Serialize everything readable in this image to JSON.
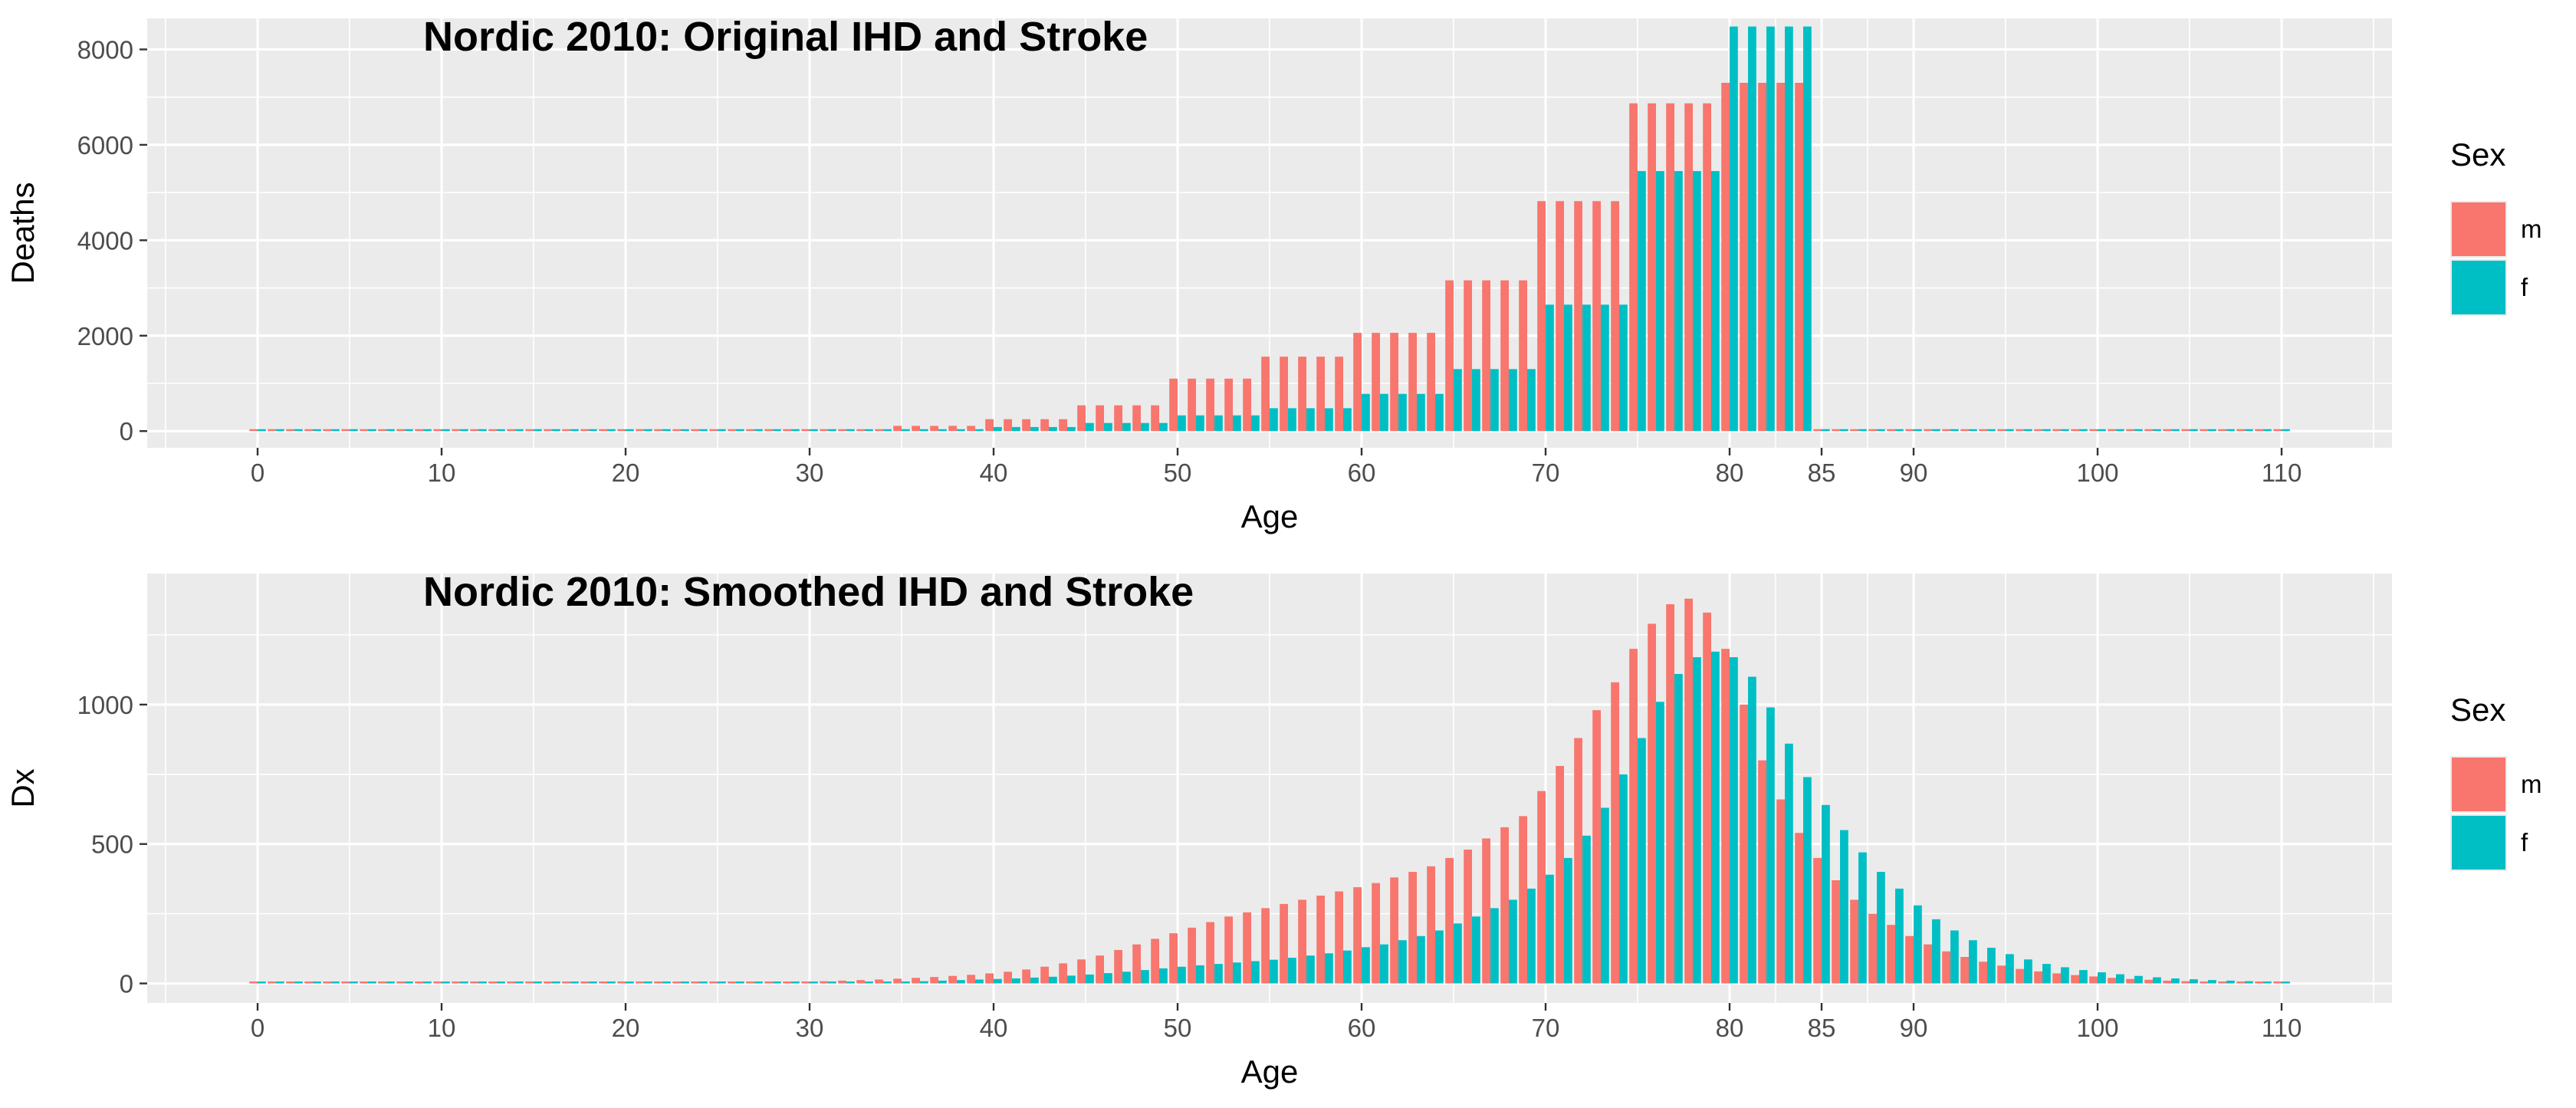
{
  "colors": {
    "panel_bg": "#EBEBEB",
    "grid": "#FFFFFF",
    "axis_text": "#4D4D4D",
    "title": "#000000"
  },
  "legend": {
    "title": "Sex",
    "entries": [
      {
        "key": "m",
        "label": "m",
        "color": "#F8766D"
      },
      {
        "key": "f",
        "label": "f",
        "color": "#00BFC4"
      }
    ]
  },
  "chart_data": [
    {
      "type": "bar",
      "title": "Nordic 2010: Original IHD and Stroke",
      "xlabel": "Age",
      "ylabel": "Deaths",
      "xlim": [
        -6,
        116
      ],
      "ylim": [
        -350,
        8650
      ],
      "x_ticks": [
        0,
        10,
        20,
        30,
        40,
        50,
        60,
        70,
        80,
        85,
        90,
        100,
        110
      ],
      "y_ticks": [
        0,
        2000,
        4000,
        6000,
        8000
      ],
      "grid": true,
      "legend_position": "right",
      "x": [
        0,
        1,
        2,
        3,
        4,
        5,
        6,
        7,
        8,
        9,
        10,
        11,
        12,
        13,
        14,
        15,
        16,
        17,
        18,
        19,
        20,
        21,
        22,
        23,
        24,
        25,
        26,
        27,
        28,
        29,
        30,
        31,
        32,
        33,
        34,
        35,
        36,
        37,
        38,
        39,
        40,
        41,
        42,
        43,
        44,
        45,
        46,
        47,
        48,
        49,
        50,
        51,
        52,
        53,
        54,
        55,
        56,
        57,
        58,
        59,
        60,
        61,
        62,
        63,
        64,
        65,
        66,
        67,
        68,
        69,
        70,
        71,
        72,
        73,
        74,
        75,
        76,
        77,
        78,
        79,
        80,
        81,
        82,
        83,
        84,
        85,
        86,
        87,
        88,
        89,
        90,
        91,
        92,
        93,
        94,
        95,
        96,
        97,
        98,
        99,
        100,
        101,
        102,
        103,
        104,
        105,
        106,
        107,
        108,
        109,
        110
      ],
      "series": [
        {
          "name": "m",
          "values": [
            2,
            2,
            2,
            2,
            2,
            2,
            2,
            2,
            2,
            2,
            2,
            2,
            2,
            2,
            2,
            3,
            3,
            3,
            3,
            3,
            6,
            6,
            6,
            6,
            6,
            15,
            15,
            15,
            15,
            15,
            40,
            40,
            40,
            40,
            40,
            110,
            110,
            110,
            110,
            110,
            250,
            250,
            250,
            250,
            250,
            540,
            540,
            540,
            540,
            540,
            1100,
            1100,
            1100,
            1100,
            1100,
            1560,
            1560,
            1560,
            1560,
            1560,
            2060,
            2060,
            2060,
            2060,
            2060,
            3160,
            3160,
            3160,
            3160,
            3160,
            4820,
            4820,
            4820,
            4820,
            4820,
            6870,
            6870,
            6870,
            6870,
            6870,
            7300,
            7300,
            7300,
            7300,
            7300,
            0,
            0,
            0,
            0,
            0,
            0,
            0,
            0,
            0,
            0,
            0,
            0,
            0,
            0,
            0,
            0,
            0,
            0,
            0,
            0,
            0,
            0,
            0,
            0,
            0,
            0
          ]
        },
        {
          "name": "f",
          "values": [
            1,
            1,
            1,
            1,
            1,
            1,
            1,
            1,
            1,
            1,
            1,
            1,
            1,
            1,
            1,
            1,
            1,
            1,
            1,
            1,
            2,
            2,
            2,
            2,
            2,
            5,
            5,
            5,
            5,
            5,
            12,
            12,
            12,
            12,
            12,
            35,
            35,
            35,
            35,
            35,
            85,
            85,
            85,
            85,
            85,
            170,
            170,
            170,
            170,
            170,
            330,
            330,
            330,
            330,
            330,
            480,
            480,
            480,
            480,
            480,
            780,
            780,
            780,
            780,
            780,
            1300,
            1300,
            1300,
            1300,
            1300,
            2650,
            2650,
            2650,
            2650,
            2650,
            5450,
            5450,
            5450,
            5450,
            5450,
            8480,
            8480,
            8480,
            8480,
            8480,
            0,
            0,
            0,
            0,
            0,
            0,
            0,
            0,
            0,
            0,
            0,
            0,
            0,
            0,
            0,
            0,
            0,
            0,
            0,
            0,
            0,
            0,
            0,
            0,
            0,
            0
          ]
        }
      ]
    },
    {
      "type": "bar",
      "title": "Nordic 2010: Smoothed IHD and Stroke",
      "xlabel": "Age",
      "ylabel": "Dx",
      "xlim": [
        -6,
        116
      ],
      "ylim": [
        -70,
        1470
      ],
      "x_ticks": [
        0,
        10,
        20,
        30,
        40,
        50,
        60,
        70,
        80,
        85,
        90,
        100,
        110
      ],
      "y_ticks": [
        0,
        500,
        1000
      ],
      "grid": true,
      "legend_position": "right",
      "x": [
        0,
        1,
        2,
        3,
        4,
        5,
        6,
        7,
        8,
        9,
        10,
        11,
        12,
        13,
        14,
        15,
        16,
        17,
        18,
        19,
        20,
        21,
        22,
        23,
        24,
        25,
        26,
        27,
        28,
        29,
        30,
        31,
        32,
        33,
        34,
        35,
        36,
        37,
        38,
        39,
        40,
        41,
        42,
        43,
        44,
        45,
        46,
        47,
        48,
        49,
        50,
        51,
        52,
        53,
        54,
        55,
        56,
        57,
        58,
        59,
        60,
        61,
        62,
        63,
        64,
        65,
        66,
        67,
        68,
        69,
        70,
        71,
        72,
        73,
        74,
        75,
        76,
        77,
        78,
        79,
        80,
        81,
        82,
        83,
        84,
        85,
        86,
        87,
        88,
        89,
        90,
        91,
        92,
        93,
        94,
        95,
        96,
        97,
        98,
        99,
        100,
        101,
        102,
        103,
        104,
        105,
        106,
        107,
        108,
        109,
        110
      ],
      "series": [
        {
          "name": "m",
          "values": [
            0,
            0,
            0,
            0,
            0,
            0,
            0,
            0,
            0,
            0,
            0,
            0,
            0,
            0,
            0,
            1,
            1,
            1,
            1,
            1,
            1,
            1,
            2,
            2,
            2,
            3,
            3,
            4,
            5,
            6,
            7,
            8,
            10,
            12,
            14,
            17,
            20,
            23,
            27,
            31,
            36,
            42,
            50,
            60,
            72,
            86,
            100,
            120,
            140,
            160,
            180,
            200,
            220,
            240,
            255,
            270,
            285,
            300,
            315,
            330,
            345,
            360,
            380,
            400,
            420,
            450,
            480,
            520,
            560,
            600,
            690,
            780,
            880,
            980,
            1080,
            1200,
            1290,
            1360,
            1380,
            1330,
            1200,
            1000,
            800,
            660,
            540,
            450,
            370,
            300,
            250,
            210,
            170,
            140,
            115,
            95,
            78,
            64,
            52,
            43,
            36,
            30,
            25,
            20,
            16,
            13,
            10,
            8,
            6,
            5,
            4,
            3,
            2
          ]
        },
        {
          "name": "f",
          "values": [
            0,
            0,
            0,
            0,
            0,
            0,
            0,
            0,
            0,
            0,
            0,
            0,
            0,
            0,
            0,
            0,
            0,
            0,
            0,
            0,
            0,
            0,
            1,
            1,
            1,
            1,
            1,
            1,
            2,
            2,
            3,
            3,
            4,
            5,
            6,
            7,
            8,
            10,
            12,
            14,
            16,
            18,
            21,
            24,
            28,
            32,
            37,
            42,
            48,
            54,
            60,
            65,
            70,
            75,
            80,
            85,
            92,
            100,
            108,
            118,
            130,
            140,
            155,
            170,
            190,
            215,
            240,
            270,
            300,
            340,
            390,
            450,
            530,
            630,
            750,
            880,
            1010,
            1110,
            1170,
            1190,
            1170,
            1100,
            990,
            860,
            740,
            640,
            550,
            470,
            400,
            340,
            280,
            230,
            190,
            155,
            128,
            105,
            86,
            70,
            58,
            48,
            40,
            33,
            27,
            22,
            18,
            15,
            12,
            10,
            8,
            7,
            6
          ]
        }
      ]
    }
  ]
}
